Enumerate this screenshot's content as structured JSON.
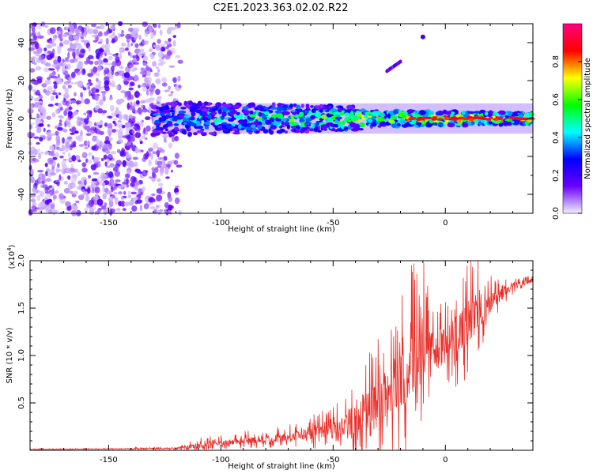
{
  "title": "C2E1.2023.363.02.02.R22",
  "chart_data": [
    {
      "type": "heatmap",
      "name": "spectrogram",
      "xlabel": "Height of straight line (km)",
      "ylabel": "Frequency (Hz)",
      "xlim": [
        -185,
        39
      ],
      "ylim": [
        -50,
        50
      ],
      "xticks": [
        -150,
        -100,
        -50,
        0
      ],
      "xtick_labels": [
        "-150",
        "-100",
        "-50",
        "0"
      ],
      "yticks": [
        -40,
        -20,
        0,
        20,
        40
      ],
      "ytick_labels": [
        "-40",
        "-20",
        "0",
        "20",
        "40"
      ],
      "colorbar": {
        "label": "Normalized spectral amplitude",
        "range": [
          0.0,
          1.0
        ],
        "ticks": [
          0.0,
          0.2,
          0.4,
          0.6,
          0.8
        ],
        "tick_labels": [
          "0.0",
          "0.2",
          "0.4",
          "0.6",
          "0.8"
        ],
        "colormap": [
          "#f0f0ff",
          "#6a00ff",
          "#0000ff",
          "#00ffff",
          "#00ff00",
          "#ffff00",
          "#ff0000",
          "#ff0080"
        ]
      },
      "features": [
        {
          "desc": "broadband noise",
          "x_range": [
            -185,
            -118
          ],
          "freq_range": [
            -50,
            50
          ],
          "level": 0.15
        },
        {
          "desc": "carrier signal",
          "x_range": [
            -130,
            39
          ],
          "freq_center": 0,
          "freq_halfwidth": 4,
          "level_start": 0.35,
          "level_end": 0.9
        },
        {
          "desc": "drifting line",
          "points": [
            [
              -26,
              25
            ],
            [
              -20,
              30
            ]
          ],
          "level": 0.2
        },
        {
          "desc": "spot",
          "points": [
            [
              -10,
              43
            ]
          ],
          "level": 0.2
        }
      ]
    },
    {
      "type": "line",
      "name": "snr",
      "xlabel": "Height of straight line (km)",
      "ylabel": "SNR (10 * v/v)",
      "scale_label": "(x10",
      "scale_exp": "4",
      "scale_close": ")",
      "xlim": [
        -185,
        39
      ],
      "ylim": [
        0,
        2.0
      ],
      "xticks": [
        -150,
        -100,
        -50,
        0
      ],
      "xtick_labels": [
        "-150",
        "-100",
        "-50",
        "0"
      ],
      "yticks": [
        0.5,
        1.0,
        1.5,
        2.0
      ],
      "ytick_labels": [
        "0.5",
        "1.0",
        "1.5",
        "2.0"
      ],
      "color": "#e8302a",
      "series": [
        {
          "name": "SNR envelope",
          "x": [
            -185,
            -150,
            -120,
            -110,
            -100,
            -90,
            -80,
            -70,
            -60,
            -50,
            -45,
            -40,
            -35,
            -30,
            -25,
            -20,
            -15,
            -10,
            -5,
            0,
            5,
            10,
            15,
            20,
            25,
            30,
            35,
            39
          ],
          "values": [
            0.01,
            0.015,
            0.02,
            0.05,
            0.08,
            0.1,
            0.12,
            0.14,
            0.18,
            0.22,
            0.27,
            0.33,
            0.45,
            0.55,
            0.65,
            0.75,
            0.9,
            1.0,
            1.1,
            1.15,
            1.25,
            1.35,
            1.45,
            1.55,
            1.65,
            1.72,
            1.77,
            1.79
          ],
          "noise_amplitude": [
            0.005,
            0.005,
            0.01,
            0.05,
            0.05,
            0.06,
            0.07,
            0.08,
            0.12,
            0.15,
            0.2,
            0.3,
            0.35,
            0.45,
            0.55,
            0.6,
            0.7,
            0.6,
            0.4,
            0.35,
            0.45,
            0.45,
            0.35,
            0.2,
            0.1,
            0.06,
            0.04,
            0.03
          ]
        }
      ]
    }
  ]
}
